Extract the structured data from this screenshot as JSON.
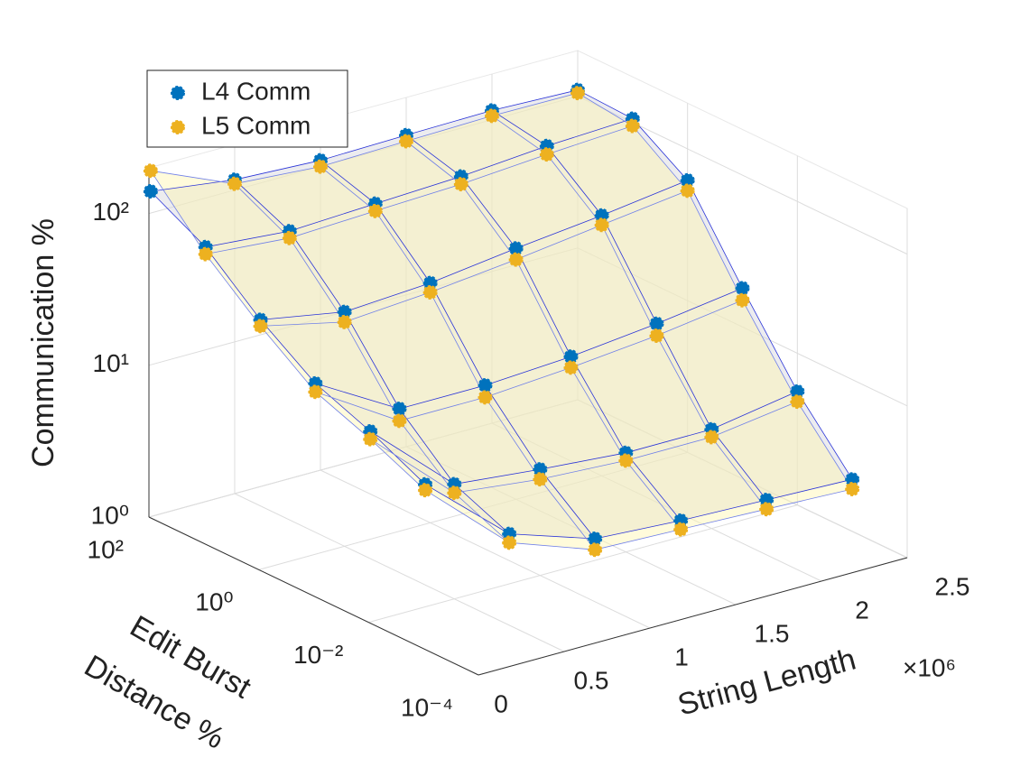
{
  "chart_data": {
    "type": "surface3d",
    "zlabel": "Communication %",
    "ylabel": [
      "Edit Burst",
      "Distance %"
    ],
    "xlabel": "String Length",
    "x_multiplier": "×10⁶",
    "x": [
      10000,
      500000,
      1000000,
      1500000,
      2000000,
      2500000
    ],
    "y": [
      0.001,
      0.01,
      0.1,
      1,
      10,
      100
    ],
    "series": [
      {
        "name": "L4 Comm",
        "color": "#0072bd",
        "mesh_color": "#2a34d8",
        "fill": "#d4d4dc",
        "values": [
          [
            12,
            4,
            2.6,
            2.4,
            2.3,
            2.2
          ],
          [
            18,
            5.7,
            5,
            4.5,
            4.5,
            5.6
          ],
          [
            25,
            12,
            12,
            13,
            15,
            18
          ],
          [
            44,
            35,
            38,
            45,
            52,
            62
          ],
          [
            89,
            80,
            85,
            90,
            100,
            106
          ],
          [
            139,
            117,
            110,
            113,
            115,
            110
          ]
        ]
      },
      {
        "name": "L5 Comm",
        "color": "#edb120",
        "mesh_color": "#7080e8",
        "fill": "#fff6b0",
        "values": [
          [
            11,
            3.5,
            2.2,
            2.1,
            2,
            1.9
          ],
          [
            16,
            5,
            4.3,
            4,
            4,
            4.8
          ],
          [
            22,
            10,
            10,
            11,
            12.5,
            15
          ],
          [
            40,
            30,
            33,
            38,
            45,
            53
          ],
          [
            80,
            72,
            76,
            80,
            88,
            95
          ],
          [
            190,
            110,
            100,
            103,
            106,
            105
          ]
        ]
      }
    ],
    "xlim": [
      0,
      2500000
    ],
    "ylim": [
      0.0001,
      100
    ],
    "zlim": [
      1,
      200
    ],
    "xticks": [
      0,
      {
        "value": 500000,
        "label": "0.5"
      },
      {
        "value": 1000000,
        "label": "1"
      },
      {
        "value": 1500000,
        "label": "1.5"
      },
      {
        "value": 2000000,
        "label": "2"
      },
      {
        "value": 2500000,
        "label": "2.5"
      }
    ],
    "yticks": [
      {
        "value": 0.0001,
        "label": "10⁻⁴"
      },
      {
        "value": 0.01,
        "label": "10⁻²"
      },
      {
        "value": 1,
        "label": "10⁰"
      },
      {
        "value": 100,
        "label": "10²"
      }
    ],
    "zticks": [
      {
        "value": 1,
        "label": "10⁰"
      },
      {
        "value": 10,
        "label": "10¹"
      },
      {
        "value": 100,
        "label": "10²"
      }
    ],
    "yscale": "log",
    "zscale": "log",
    "grid": true,
    "legend": "upper left"
  }
}
